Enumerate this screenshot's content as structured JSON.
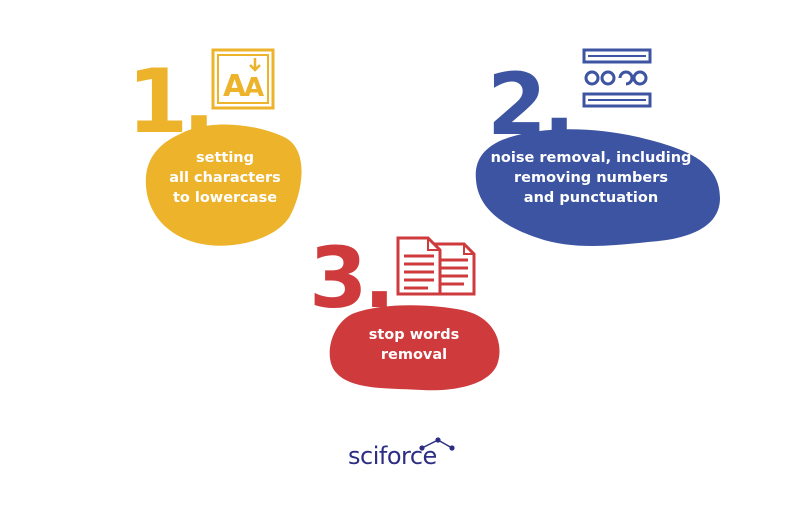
{
  "steps": [
    {
      "number": "1.",
      "lines": [
        "setting",
        "all characters",
        "to lowercase"
      ],
      "color": "#ecb32b",
      "icon": "font-case-icon"
    },
    {
      "number": "2.",
      "lines": [
        "noise removal, including",
        "removing numbers",
        "and punctuation"
      ],
      "color": "#3c54a1",
      "icon": "text-input-icon"
    },
    {
      "number": "3.",
      "lines": [
        "stop words",
        "removal"
      ],
      "color": "#cf3a3c",
      "icon": "documents-icon"
    }
  ],
  "logo": {
    "text": "sciforce",
    "color": "#2d2e83"
  }
}
